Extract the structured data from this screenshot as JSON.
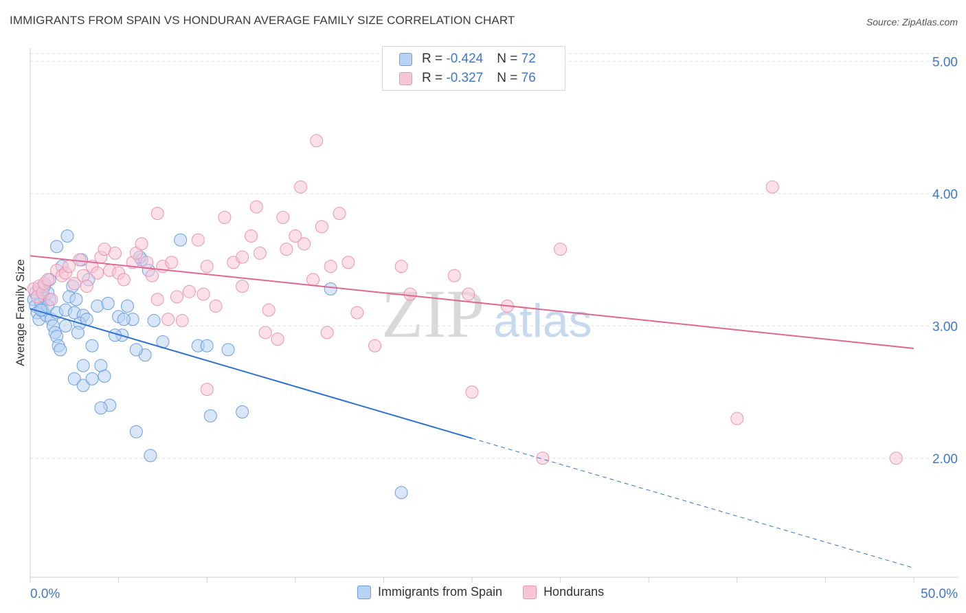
{
  "header": {
    "title": "IMMIGRANTS FROM SPAIN VS HONDURAN AVERAGE FAMILY SIZE CORRELATION CHART",
    "source": "Source: ZipAtlas.com"
  },
  "watermark": {
    "zip": "ZIP",
    "atlas": "atlas"
  },
  "legend_inset": [
    {
      "r_label": "R = ",
      "r_value": "-0.424",
      "n_label": "N = ",
      "n_value": "72"
    },
    {
      "r_label": "R = ",
      "r_value": "-0.327",
      "n_label": "N = ",
      "n_value": "76"
    }
  ],
  "chart_data": {
    "type": "scatter",
    "title": "IMMIGRANTS FROM SPAIN VS HONDURAN AVERAGE FAMILY SIZE CORRELATION CHART",
    "xlabel": "",
    "ylabel": "Average Family Size",
    "xlim": [
      0,
      50
    ],
    "ylim": [
      1.1,
      5.1
    ],
    "x_tick_labels": [
      "0.0%",
      "50.0%"
    ],
    "y_ticks": [
      2.0,
      3.0,
      4.0,
      5.0
    ],
    "y_tick_labels": [
      "2.00",
      "3.00",
      "4.00",
      "5.00"
    ],
    "grid": true,
    "legend": "bottom-center",
    "series": [
      {
        "name": "Immigrants from Spain",
        "color": "#6a9fe0",
        "fill": "#b8d2f3",
        "line_color": "#2c72d0",
        "r": -0.424,
        "n": 72,
        "trend": {
          "x0": 0.0,
          "y0": 3.13,
          "x_solid_end": 25.0,
          "x1": 50.0,
          "y1": 1.17
        },
        "points": [
          [
            0.2,
            3.2
          ],
          [
            0.3,
            3.15
          ],
          [
            0.4,
            3.1
          ],
          [
            0.5,
            3.05
          ],
          [
            0.6,
            3.18
          ],
          [
            0.7,
            3.12
          ],
          [
            0.8,
            3.22
          ],
          [
            0.9,
            3.08
          ],
          [
            1.0,
            3.25
          ],
          [
            1.1,
            3.2
          ],
          [
            1.2,
            3.05
          ],
          [
            1.3,
            3.0
          ],
          [
            1.4,
            2.95
          ],
          [
            1.5,
            2.92
          ],
          [
            1.6,
            2.85
          ],
          [
            1.7,
            2.82
          ],
          [
            0.5,
            3.28
          ],
          [
            0.8,
            3.3
          ],
          [
            1.0,
            3.15
          ],
          [
            1.5,
            3.1
          ],
          [
            2.0,
            3.12
          ],
          [
            2.5,
            3.1
          ],
          [
            3.0,
            3.08
          ],
          [
            2.8,
            3.02
          ],
          [
            1.8,
            3.45
          ],
          [
            2.1,
            3.68
          ],
          [
            1.5,
            3.6
          ],
          [
            2.4,
            3.3
          ],
          [
            2.2,
            3.22
          ],
          [
            3.2,
            3.05
          ],
          [
            3.5,
            2.85
          ],
          [
            2.7,
            2.95
          ],
          [
            2.0,
            3.0
          ],
          [
            3.0,
            2.7
          ],
          [
            2.5,
            2.6
          ],
          [
            3.0,
            2.55
          ],
          [
            3.5,
            2.6
          ],
          [
            4.0,
            2.7
          ],
          [
            4.2,
            2.62
          ],
          [
            4.5,
            2.4
          ],
          [
            4.0,
            2.38
          ],
          [
            5.5,
            3.15
          ],
          [
            5.0,
            3.07
          ],
          [
            5.2,
            2.93
          ],
          [
            6.5,
            2.78
          ],
          [
            5.8,
            3.05
          ],
          [
            6.0,
            2.82
          ],
          [
            7.0,
            3.04
          ],
          [
            6.3,
            3.5
          ],
          [
            6.7,
            3.42
          ],
          [
            8.5,
            3.65
          ],
          [
            9.5,
            2.85
          ],
          [
            10.0,
            2.85
          ],
          [
            11.2,
            2.82
          ],
          [
            12.0,
            2.35
          ],
          [
            10.2,
            2.32
          ],
          [
            6.0,
            2.2
          ],
          [
            6.8,
            2.02
          ],
          [
            17.0,
            3.28
          ],
          [
            21.0,
            1.74
          ],
          [
            7.5,
            2.88
          ],
          [
            4.8,
            2.93
          ],
          [
            3.8,
            3.15
          ],
          [
            3.3,
            3.35
          ],
          [
            0.3,
            3.25
          ],
          [
            0.6,
            3.12
          ],
          [
            1.1,
            3.35
          ],
          [
            2.6,
            3.2
          ],
          [
            6.2,
            3.52
          ],
          [
            5.3,
            3.05
          ],
          [
            4.4,
            3.17
          ],
          [
            2.9,
            3.5
          ]
        ]
      },
      {
        "name": "Hondurans",
        "color": "#ec94b0",
        "fill": "#f7c6d6",
        "line_color": "#e2678f",
        "r": -0.327,
        "n": 76,
        "trend": {
          "x0": 0.0,
          "y0": 3.53,
          "x1": 50.0,
          "y1": 2.83
        },
        "points": [
          [
            0.2,
            3.28
          ],
          [
            0.4,
            3.22
          ],
          [
            0.5,
            3.3
          ],
          [
            0.7,
            3.25
          ],
          [
            0.8,
            3.32
          ],
          [
            1.0,
            3.35
          ],
          [
            1.2,
            3.2
          ],
          [
            1.5,
            3.42
          ],
          [
            1.8,
            3.38
          ],
          [
            2.0,
            3.4
          ],
          [
            2.2,
            3.45
          ],
          [
            2.5,
            3.32
          ],
          [
            2.8,
            3.5
          ],
          [
            3.0,
            3.38
          ],
          [
            3.2,
            3.3
          ],
          [
            3.5,
            3.45
          ],
          [
            3.8,
            3.4
          ],
          [
            4.0,
            3.52
          ],
          [
            4.2,
            3.58
          ],
          [
            4.5,
            3.42
          ],
          [
            4.8,
            3.55
          ],
          [
            5.0,
            3.4
          ],
          [
            5.3,
            3.35
          ],
          [
            5.8,
            3.48
          ],
          [
            6.0,
            3.55
          ],
          [
            6.3,
            3.62
          ],
          [
            6.6,
            3.48
          ],
          [
            6.9,
            3.38
          ],
          [
            7.2,
            3.2
          ],
          [
            7.5,
            3.45
          ],
          [
            7.8,
            3.05
          ],
          [
            8.0,
            3.48
          ],
          [
            8.3,
            3.22
          ],
          [
            8.6,
            3.04
          ],
          [
            9.0,
            3.26
          ],
          [
            9.5,
            3.65
          ],
          [
            9.8,
            3.24
          ],
          [
            10.0,
            3.45
          ],
          [
            10.5,
            3.15
          ],
          [
            11.0,
            3.82
          ],
          [
            11.5,
            3.48
          ],
          [
            12.0,
            3.3
          ],
          [
            12.5,
            3.68
          ],
          [
            12.8,
            3.9
          ],
          [
            13.0,
            3.55
          ],
          [
            13.5,
            3.12
          ],
          [
            14.0,
            2.9
          ],
          [
            14.3,
            3.82
          ],
          [
            14.5,
            3.58
          ],
          [
            15.0,
            3.68
          ],
          [
            15.5,
            3.62
          ],
          [
            16.0,
            3.35
          ],
          [
            17.0,
            3.45
          ],
          [
            17.5,
            3.85
          ],
          [
            16.5,
            3.75
          ],
          [
            16.8,
            2.95
          ],
          [
            15.3,
            4.05
          ],
          [
            16.2,
            4.4
          ],
          [
            18.0,
            3.48
          ],
          [
            19.5,
            2.85
          ],
          [
            21.0,
            3.45
          ],
          [
            21.5,
            3.24
          ],
          [
            24.0,
            3.38
          ],
          [
            25.0,
            2.5
          ],
          [
            24.8,
            3.24
          ],
          [
            27.0,
            3.15
          ],
          [
            29.0,
            2.0
          ],
          [
            30.0,
            3.58
          ],
          [
            40.0,
            2.3
          ],
          [
            42.0,
            4.05
          ],
          [
            49.0,
            2.0
          ],
          [
            13.3,
            2.95
          ],
          [
            10.0,
            2.52
          ],
          [
            18.5,
            3.1
          ],
          [
            7.2,
            3.85
          ],
          [
            12.0,
            3.52
          ]
        ]
      }
    ]
  }
}
